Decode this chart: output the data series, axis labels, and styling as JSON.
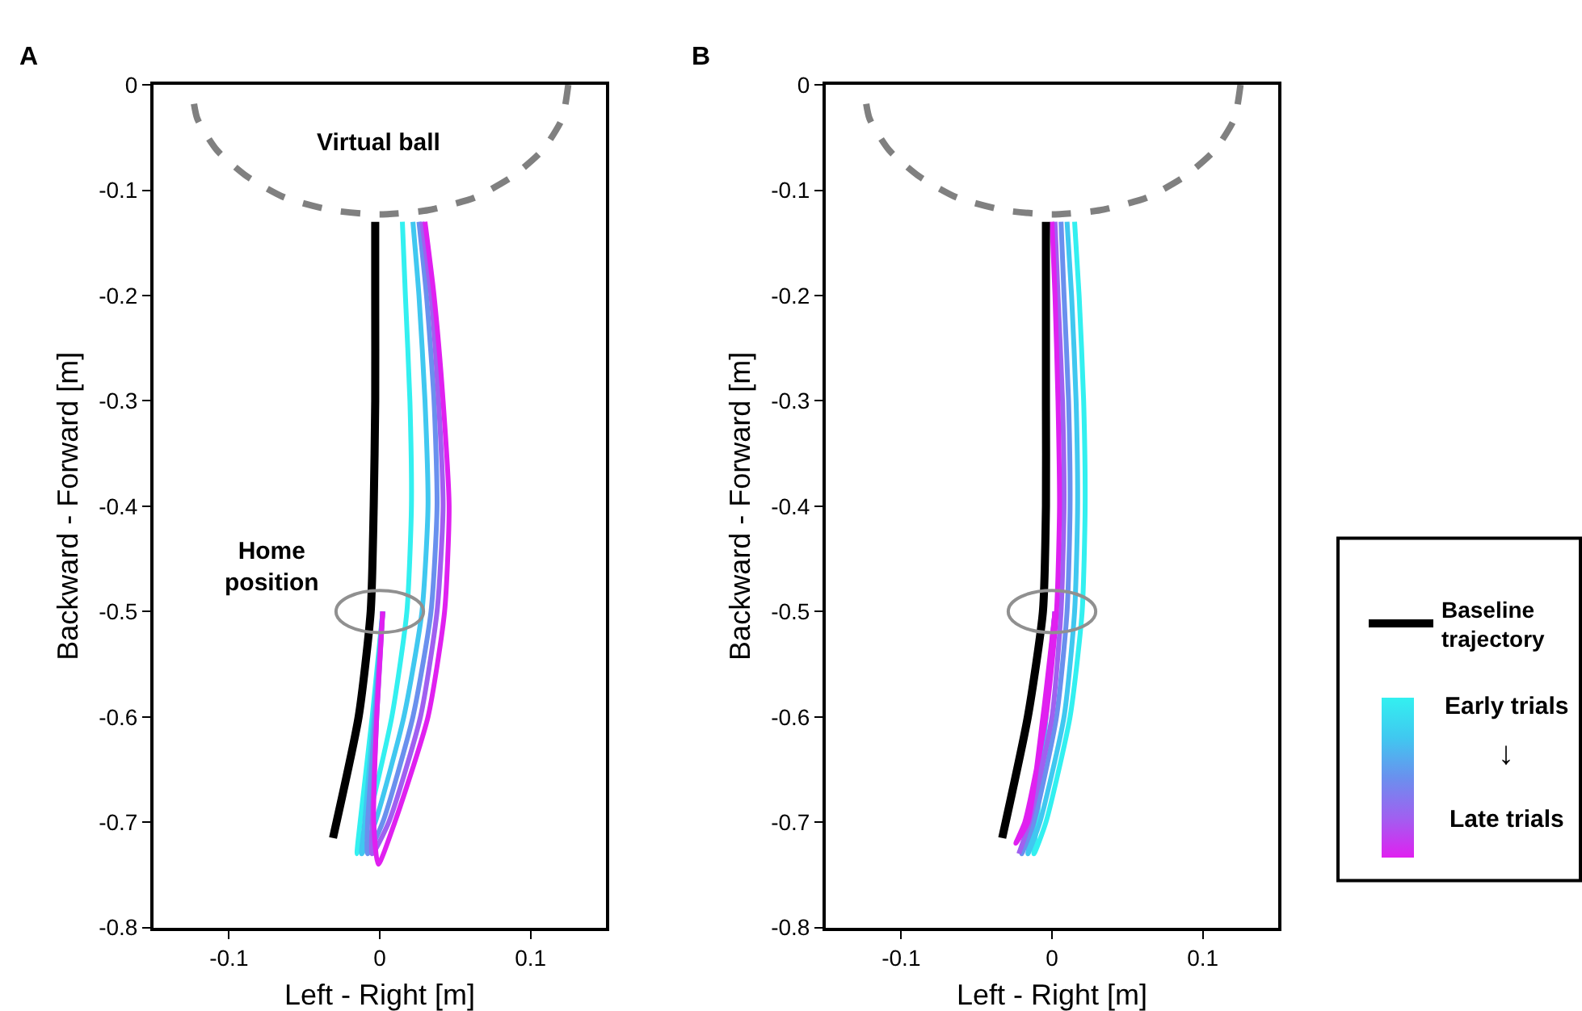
{
  "chart_data": [
    {
      "type": "line",
      "title": "A",
      "xlabel": "Left - Right [m]",
      "ylabel": "Backward - Forward [m]",
      "xlim": [
        -0.15,
        0.15
      ],
      "xticks": [
        -0.1,
        0,
        0.1
      ],
      "ylim": [
        -0.8,
        0
      ],
      "yticks": [
        0,
        -0.1,
        -0.2,
        -0.3,
        -0.4,
        -0.5,
        -0.6,
        -0.7,
        -0.8
      ],
      "grid": false,
      "legend": false,
      "marker": "none",
      "annotations": [
        "Virtual ball",
        "Home position"
      ],
      "series": [
        {
          "color": "#808080",
          "line_style": "dashed",
          "x": [
            0.125,
            0.121,
            0.108,
            0.088,
            0.063,
            0.032,
            0,
            -0.032,
            -0.063,
            -0.088,
            -0.108,
            -0.121,
            -0.125
          ],
          "values": [
            0,
            -0.032,
            -0.062,
            -0.087,
            -0.107,
            -0.119,
            -0.123,
            -0.119,
            -0.107,
            -0.087,
            -0.062,
            -0.032,
            0
          ]
        },
        {
          "color": "#33f0f0",
          "x": [
            0.002,
            -0.005,
            -0.013,
            -0.015,
            -0.008,
            0.008,
            0.018,
            0.021,
            0.02,
            0.017,
            0.015
          ],
          "values": [
            -0.5,
            -0.6,
            -0.7,
            -0.73,
            -0.7,
            -0.6,
            -0.5,
            -0.4,
            -0.3,
            -0.2,
            -0.13
          ]
        },
        {
          "color": "#40c8f0",
          "x": [
            0.002,
            -0.004,
            -0.01,
            -0.012,
            -0.003,
            0.016,
            0.028,
            0.032,
            0.03,
            0.026,
            0.022
          ],
          "values": [
            -0.5,
            -0.6,
            -0.7,
            -0.73,
            -0.7,
            -0.6,
            -0.5,
            -0.4,
            -0.3,
            -0.2,
            -0.13
          ]
        },
        {
          "color": "#6a90ee",
          "x": [
            0.002,
            -0.003,
            -0.008,
            -0.008,
            0.002,
            0.022,
            0.034,
            0.038,
            0.036,
            0.031,
            0.026
          ],
          "values": [
            -0.5,
            -0.6,
            -0.7,
            -0.73,
            -0.7,
            -0.6,
            -0.5,
            -0.4,
            -0.3,
            -0.2,
            -0.13
          ]
        },
        {
          "color": "#a060f0",
          "x": [
            0.002,
            -0.002,
            -0.005,
            -0.005,
            0.006,
            0.027,
            0.038,
            0.042,
            0.039,
            0.034,
            0.028
          ],
          "values": [
            -0.5,
            -0.6,
            -0.7,
            -0.73,
            -0.7,
            -0.6,
            -0.5,
            -0.4,
            -0.3,
            -0.2,
            -0.13
          ]
        },
        {
          "color": "#e020f0",
          "x": [
            0.002,
            -0.002,
            -0.004,
            -0.001,
            0.01,
            0.032,
            0.043,
            0.046,
            0.042,
            0.036,
            0.03
          ],
          "values": [
            -0.5,
            -0.6,
            -0.7,
            -0.74,
            -0.7,
            -0.6,
            -0.5,
            -0.4,
            -0.3,
            -0.2,
            -0.13
          ]
        },
        {
          "color": "#000000",
          "x": [
            -0.031,
            -0.014,
            -0.006,
            -0.004,
            -0.003,
            -0.003,
            -0.003
          ],
          "values": [
            -0.715,
            -0.6,
            -0.5,
            -0.4,
            -0.3,
            -0.2,
            -0.13
          ]
        }
      ]
    },
    {
      "type": "line",
      "title": "B",
      "xlabel": "Left - Right [m]",
      "ylabel": "Backward - Forward [m]",
      "xlim": [
        -0.15,
        0.15
      ],
      "xticks": [
        -0.1,
        0,
        0.1
      ],
      "ylim": [
        -0.8,
        0
      ],
      "yticks": [
        0,
        -0.1,
        -0.2,
        -0.3,
        -0.4,
        -0.5,
        -0.6,
        -0.7,
        -0.8
      ],
      "grid": false,
      "legend": "right",
      "marker": "none",
      "annotations": [
        "Early trials",
        "↓",
        "Late trials"
      ],
      "series": [
        {
          "color": "#808080",
          "line_style": "dashed",
          "x": [
            0.125,
            0.121,
            0.108,
            0.088,
            0.063,
            0.032,
            0,
            -0.032,
            -0.063,
            -0.088,
            -0.108,
            -0.121,
            -0.125
          ],
          "values": [
            0,
            -0.032,
            -0.062,
            -0.087,
            -0.107,
            -0.119,
            -0.123,
            -0.119,
            -0.107,
            -0.087,
            -0.062,
            -0.032,
            0
          ]
        },
        {
          "color": "#33f0f0",
          "x": [
            0.002,
            -0.004,
            -0.01,
            -0.012,
            -0.004,
            0.012,
            0.02,
            0.022,
            0.021,
            0.018,
            0.015
          ],
          "values": [
            -0.5,
            -0.6,
            -0.7,
            -0.73,
            -0.7,
            -0.6,
            -0.5,
            -0.4,
            -0.3,
            -0.2,
            -0.13
          ]
        },
        {
          "color": "#40c8f0",
          "x": [
            0.002,
            -0.004,
            -0.012,
            -0.016,
            -0.008,
            0.008,
            0.015,
            0.017,
            0.016,
            0.013,
            0.01
          ],
          "values": [
            -0.5,
            -0.6,
            -0.7,
            -0.73,
            -0.7,
            -0.6,
            -0.5,
            -0.4,
            -0.3,
            -0.2,
            -0.13
          ]
        },
        {
          "color": "#6a90ee",
          "x": [
            0.002,
            -0.005,
            -0.014,
            -0.02,
            -0.012,
            0.003,
            0.01,
            0.012,
            0.011,
            0.008,
            0.006
          ],
          "values": [
            -0.5,
            -0.6,
            -0.7,
            -0.73,
            -0.7,
            -0.6,
            -0.5,
            -0.4,
            -0.3,
            -0.2,
            -0.13
          ]
        },
        {
          "color": "#a060f0",
          "x": [
            0.002,
            -0.005,
            -0.015,
            -0.022,
            -0.015,
            0.0,
            0.006,
            0.008,
            0.007,
            0.004,
            0.002
          ],
          "values": [
            -0.5,
            -0.6,
            -0.7,
            -0.73,
            -0.7,
            -0.6,
            -0.5,
            -0.4,
            -0.3,
            -0.2,
            -0.13
          ]
        },
        {
          "color": "#e020f0",
          "x": [
            0.002,
            -0.006,
            -0.016,
            -0.024,
            -0.018,
            -0.004,
            0.003,
            0.005,
            0.004,
            0.002,
            0.0
          ],
          "values": [
            -0.5,
            -0.6,
            -0.7,
            -0.72,
            -0.7,
            -0.6,
            -0.5,
            -0.4,
            -0.3,
            -0.2,
            -0.13
          ]
        },
        {
          "name": "Baseline trajectory",
          "color": "#000000",
          "x": [
            -0.033,
            -0.016,
            -0.006,
            -0.004,
            -0.004,
            -0.004,
            -0.004
          ],
          "values": [
            -0.715,
            -0.6,
            -0.5,
            -0.4,
            -0.3,
            -0.2,
            -0.13
          ]
        }
      ]
    }
  ]
}
